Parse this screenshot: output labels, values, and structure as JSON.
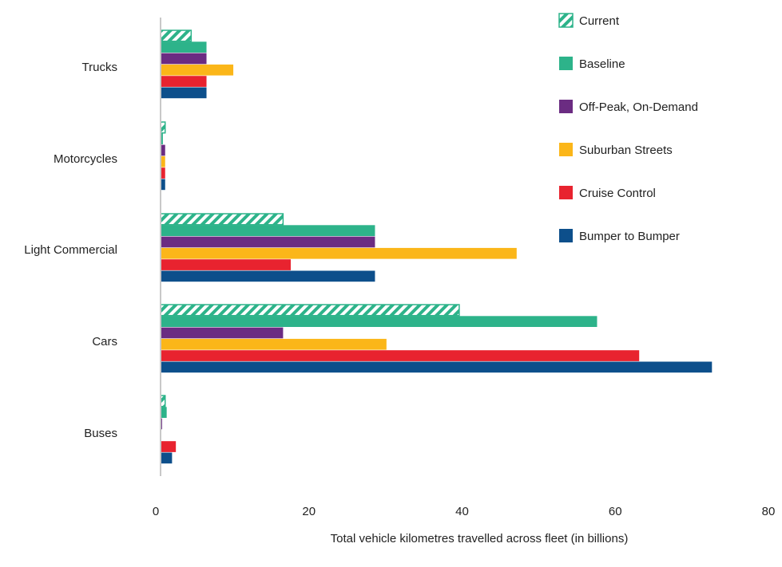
{
  "chart_data": {
    "type": "bar",
    "orientation": "horizontal",
    "title": "",
    "xlabel": "Total vehicle kilometres travelled across fleet (in billions)",
    "ylabel": "",
    "xlim": [
      0,
      80
    ],
    "xticks": [
      "0",
      "20",
      "40",
      "60",
      "80"
    ],
    "grid": false,
    "legend_position": "right",
    "categories": [
      "Trucks",
      "Motorcycles",
      "Light Commercial",
      "Cars",
      "Buses"
    ],
    "series": [
      {
        "name": "Current",
        "color": "#2db38a",
        "pattern": "hatched",
        "values": [
          4.0,
          0.6,
          16.0,
          39.0,
          0.6
        ]
      },
      {
        "name": "Baseline",
        "color": "#2db38a",
        "values": [
          6.0,
          0.3,
          28.0,
          57.0,
          0.8
        ]
      },
      {
        "name": "Off-Peak, On-Demand",
        "color": "#6b2c82",
        "values": [
          6.0,
          0.6,
          28.0,
          16.0,
          0.2
        ]
      },
      {
        "name": "Suburban Streets",
        "color": "#fbb619",
        "values": [
          9.5,
          0.6,
          46.5,
          29.5,
          0.0
        ]
      },
      {
        "name": "Cruise Control",
        "color": "#e8232f",
        "values": [
          6.0,
          0.6,
          17.0,
          62.5,
          2.0
        ]
      },
      {
        "name": "Bumper to Bumper",
        "color": "#0d4f8b",
        "values": [
          6.0,
          0.6,
          28.0,
          72.0,
          1.5
        ]
      }
    ]
  }
}
